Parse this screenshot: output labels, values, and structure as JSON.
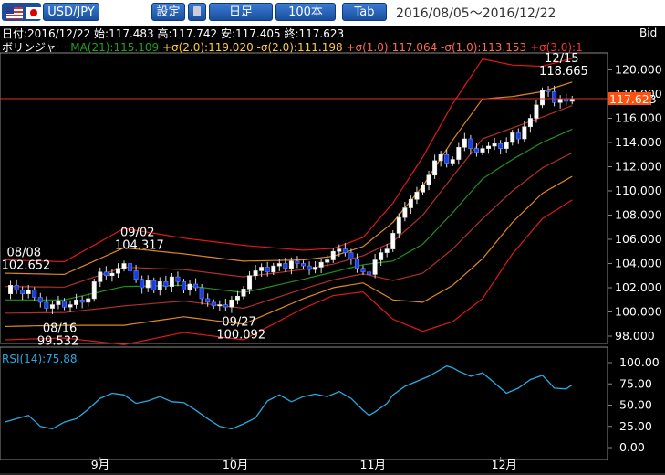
{
  "toolbar": {
    "pair": "USD/JPY",
    "settings_label": "設定",
    "interval_label": "日足",
    "bars_label": "100本",
    "tab_label": "Tab",
    "date_range": "2016/08/05～2016/12/22"
  },
  "info": {
    "ohlc": "日付:2016/12/22 始:117.483 高:117.742 安:117.405 終:117.623",
    "indicator_name": "ボリンジャー",
    "ma": "MA(21):115.109",
    "p2": "+σ(2.0):119.020",
    "m2": "-σ(2.0):111.198",
    "p1": "+σ(1.0):117.064",
    "m1": "-σ(1.0):113.153",
    "p3": "+σ(3.0):1",
    "bid": "Bid",
    "rsi_label": "RSI(14):75.88"
  },
  "colors": {
    "candle_up": "#ffffff",
    "candle_down": "#1a3fe0",
    "sigma3": "#e01818",
    "sigma2": "#e08820",
    "sigma1": "#b0302a",
    "ma": "#209020",
    "rsi": "#29a9e0",
    "price_line": "#e03030",
    "price_label_bg": "#ff5010",
    "ma_text": "#20a020",
    "p2_text": "#ffcc33",
    "m2_text": "#ffcc33",
    "p1_text": "#ff6a4a",
    "m1_text": "#ff6a4a",
    "p3_text": "#ff3030"
  },
  "chart_data": [
    {
      "type": "candlestick",
      "ylim": [
        97,
        121
      ],
      "yticks": [
        "98.000",
        "100.000",
        "102.000",
        "104.000",
        "106.000",
        "108.000",
        "110.000",
        "112.000",
        "114.000",
        "116.000",
        "118.000",
        "120.000"
      ],
      "xticks": [
        {
          "label": "9月",
          "index": 16
        },
        {
          "label": "10月",
          "index": 38
        },
        {
          "label": "11月",
          "index": 61
        },
        {
          "label": "12月",
          "index": 83
        }
      ],
      "current_price": 117.623,
      "current_price_label": "117.623",
      "annotations": [
        {
          "date": "08/08",
          "value": "102.652",
          "index": 1,
          "y": 102.652,
          "pos": "above"
        },
        {
          "date": "08/16",
          "value": "99.532",
          "index": 7,
          "y": 99.532,
          "pos": "below"
        },
        {
          "date": "09/02",
          "value": "104.317",
          "index": 20,
          "y": 104.317,
          "pos": "above"
        },
        {
          "date": "09/27",
          "value": "100.092",
          "index": 37,
          "y": 100.092,
          "pos": "below"
        },
        {
          "date": "12/15",
          "value": "118.665",
          "index": 91,
          "y": 118.665,
          "pos": "above"
        }
      ],
      "close_path": [
        [
          0,
          101.5
        ],
        [
          1,
          102.2
        ],
        [
          2,
          101.8
        ],
        [
          3,
          101.5
        ],
        [
          4,
          101.8
        ],
        [
          5,
          101.2
        ],
        [
          6,
          100.8
        ],
        [
          7,
          100.3
        ],
        [
          8,
          100.6
        ],
        [
          9,
          100.9
        ],
        [
          10,
          100.4
        ],
        [
          11,
          100.6
        ],
        [
          12,
          101.0
        ],
        [
          13,
          100.8
        ],
        [
          14,
          101.1
        ],
        [
          15,
          102.5
        ],
        [
          16,
          103.3
        ],
        [
          17,
          103.0
        ],
        [
          18,
          103.2
        ],
        [
          19,
          103.6
        ],
        [
          20,
          104.0
        ],
        [
          21,
          103.4
        ],
        [
          22,
          102.7
        ],
        [
          23,
          102.0
        ],
        [
          24,
          102.6
        ],
        [
          25,
          101.8
        ],
        [
          26,
          102.5
        ],
        [
          27,
          102.1
        ],
        [
          28,
          102.9
        ],
        [
          29,
          102.5
        ],
        [
          30,
          101.8
        ],
        [
          31,
          102.3
        ],
        [
          32,
          102.0
        ],
        [
          33,
          101.1
        ],
        [
          34,
          100.8
        ],
        [
          35,
          100.5
        ],
        [
          36,
          100.6
        ],
        [
          37,
          100.4
        ],
        [
          38,
          101.0
        ],
        [
          39,
          101.3
        ],
        [
          40,
          101.9
        ],
        [
          41,
          103.0
        ],
        [
          42,
          103.4
        ],
        [
          43,
          103.7
        ],
        [
          44,
          103.3
        ],
        [
          45,
          103.8
        ],
        [
          46,
          104.0
        ],
        [
          47,
          103.6
        ],
        [
          48,
          104.2
        ],
        [
          49,
          104.0
        ],
        [
          50,
          103.8
        ],
        [
          51,
          103.5
        ],
        [
          52,
          103.7
        ],
        [
          53,
          104.1
        ],
        [
          54,
          104.3
        ],
        [
          55,
          105.0
        ],
        [
          56,
          105.2
        ],
        [
          57,
          104.9
        ],
        [
          58,
          104.4
        ],
        [
          59,
          103.6
        ],
        [
          60,
          103.3
        ],
        [
          61,
          103.1
        ],
        [
          62,
          104.3
        ],
        [
          63,
          104.9
        ],
        [
          64,
          105.2
        ],
        [
          65,
          106.5
        ],
        [
          66,
          107.8
        ],
        [
          67,
          108.6
        ],
        [
          68,
          109.3
        ],
        [
          69,
          109.9
        ],
        [
          70,
          110.5
        ],
        [
          71,
          111.3
        ],
        [
          72,
          112.5
        ],
        [
          73,
          113.0
        ],
        [
          74,
          112.3
        ],
        [
          75,
          112.6
        ],
        [
          76,
          113.6
        ],
        [
          77,
          114.3
        ],
        [
          78,
          113.5
        ],
        [
          79,
          113.2
        ],
        [
          80,
          113.5
        ],
        [
          81,
          113.7
        ],
        [
          82,
          113.9
        ],
        [
          83,
          113.5
        ],
        [
          84,
          114.0
        ],
        [
          85,
          114.8
        ],
        [
          86,
          114.3
        ],
        [
          87,
          115.3
        ],
        [
          88,
          116.0
        ],
        [
          89,
          117.1
        ],
        [
          90,
          118.3
        ],
        [
          91,
          118.2
        ],
        [
          92,
          117.3
        ],
        [
          93,
          117.6
        ],
        [
          94,
          117.4
        ],
        [
          95,
          117.6
        ]
      ],
      "bands_mid": [
        [
          0,
          101.0
        ],
        [
          10,
          101.0
        ],
        [
          20,
          102.1
        ],
        [
          30,
          102.2
        ],
        [
          40,
          101.6
        ],
        [
          50,
          102.7
        ],
        [
          60,
          103.9
        ],
        [
          65,
          104.2
        ],
        [
          70,
          105.6
        ],
        [
          75,
          108.2
        ],
        [
          80,
          111.0
        ],
        [
          85,
          112.6
        ],
        [
          90,
          114.0
        ],
        [
          95,
          115.1
        ]
      ],
      "sigma": [
        [
          0,
          1.1
        ],
        [
          10,
          1.05
        ],
        [
          20,
          1.6
        ],
        [
          30,
          1.3
        ],
        [
          40,
          1.3
        ],
        [
          50,
          0.8
        ],
        [
          55,
          0.65
        ],
        [
          60,
          0.75
        ],
        [
          65,
          1.6
        ],
        [
          70,
          2.4
        ],
        [
          75,
          3.0
        ],
        [
          80,
          3.3
        ],
        [
          85,
          2.6
        ],
        [
          90,
          2.1
        ],
        [
          95,
          1.95
        ]
      ],
      "series": [
        {
          "name": "MA(21)"
        },
        {
          "name": "+σ(1.0)"
        },
        {
          "name": "-σ(1.0)"
        },
        {
          "name": "+σ(2.0)"
        },
        {
          "name": "-σ(2.0)"
        },
        {
          "name": "+σ(3.0)"
        }
      ]
    },
    {
      "type": "line",
      "ylim": [
        0,
        100
      ],
      "yticks": [
        "0.00",
        "25.00",
        "50.00",
        "75.00",
        "100.00"
      ],
      "rsi": [
        [
          0,
          30
        ],
        [
          2,
          34
        ],
        [
          4,
          38
        ],
        [
          6,
          25
        ],
        [
          8,
          22
        ],
        [
          10,
          30
        ],
        [
          12,
          34
        ],
        [
          14,
          45
        ],
        [
          16,
          58
        ],
        [
          18,
          64
        ],
        [
          20,
          62
        ],
        [
          22,
          52
        ],
        [
          24,
          55
        ],
        [
          26,
          60
        ],
        [
          28,
          54
        ],
        [
          30,
          53
        ],
        [
          32,
          44
        ],
        [
          34,
          34
        ],
        [
          36,
          25
        ],
        [
          38,
          22
        ],
        [
          40,
          28
        ],
        [
          42,
          35
        ],
        [
          44,
          55
        ],
        [
          46,
          62
        ],
        [
          48,
          54
        ],
        [
          50,
          60
        ],
        [
          52,
          63
        ],
        [
          54,
          60
        ],
        [
          56,
          66
        ],
        [
          58,
          58
        ],
        [
          60,
          44
        ],
        [
          61,
          38
        ],
        [
          62,
          42
        ],
        [
          64,
          52
        ],
        [
          65,
          62
        ],
        [
          67,
          72
        ],
        [
          69,
          78
        ],
        [
          71,
          84
        ],
        [
          73,
          92
        ],
        [
          74,
          96
        ],
        [
          75,
          94
        ],
        [
          76,
          90
        ],
        [
          78,
          84
        ],
        [
          80,
          88
        ],
        [
          82,
          76
        ],
        [
          84,
          64
        ],
        [
          86,
          70
        ],
        [
          88,
          80
        ],
        [
          90,
          85
        ],
        [
          91,
          78
        ],
        [
          92,
          70
        ],
        [
          94,
          69
        ],
        [
          95,
          74
        ]
      ]
    }
  ]
}
